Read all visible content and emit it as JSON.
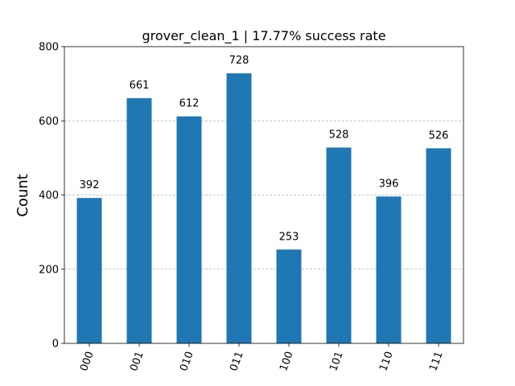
{
  "chart_data": {
    "type": "bar",
    "title": "grover_clean_1 | 17.77% success rate",
    "xlabel": "",
    "ylabel": "Count",
    "categories": [
      "000",
      "001",
      "010",
      "011",
      "100",
      "101",
      "110",
      "111"
    ],
    "values": [
      392,
      661,
      612,
      728,
      253,
      528,
      396,
      526
    ],
    "ylim": [
      0,
      800
    ],
    "yticks": [
      0,
      200,
      400,
      600,
      800
    ],
    "grid": "y-dashed",
    "bar_color": "#1f77b4",
    "grid_color": "#b0b0b0"
  }
}
